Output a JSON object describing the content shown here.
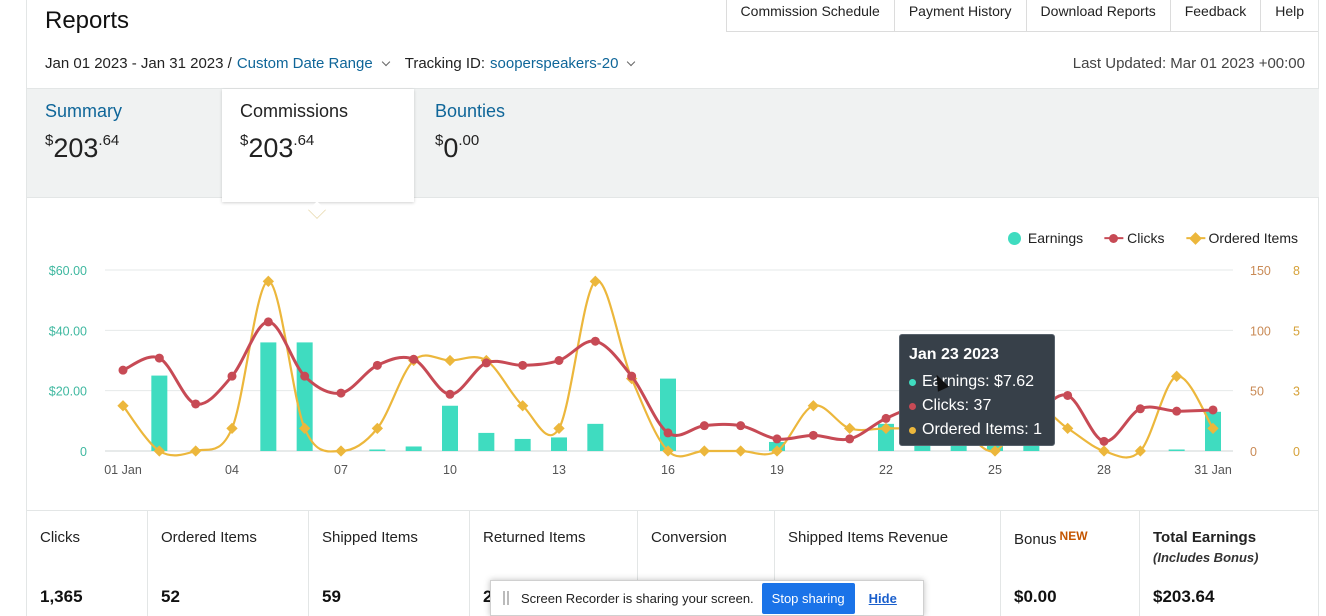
{
  "page": {
    "title": "Reports"
  },
  "nav": {
    "items": [
      "Commission Schedule",
      "Payment History",
      "Download Reports",
      "Feedback",
      "Help"
    ]
  },
  "filters": {
    "date_range": "Jan 01 2023 - Jan 31 2023 /",
    "custom_date_link": "Custom Date Range",
    "tracking_label": "Tracking ID:",
    "tracking_id": "sooperspeakers-20",
    "last_updated": "Last Updated: Mar 01 2023 +00:00"
  },
  "tabs": [
    {
      "label": "Summary",
      "currency": "$",
      "main": "203",
      "cents": ".64",
      "active": false
    },
    {
      "label": "Commissions",
      "currency": "$",
      "main": "203",
      "cents": ".64",
      "active": true
    },
    {
      "label": "Bounties",
      "currency": "$",
      "main": "0",
      "cents": ".00",
      "active": false
    }
  ],
  "legend": {
    "earnings": "Earnings",
    "clicks": "Clicks",
    "ordered": "Ordered Items"
  },
  "tooltip": {
    "date": "Jan 23 2023",
    "earnings": "Earnings: $7.62",
    "clicks": "Clicks: 37",
    "ordered": "Ordered Items: 1"
  },
  "colors": {
    "earnings": "#3fdcc0",
    "clicks": "#c74a55",
    "ordered": "#ecb73c",
    "link": "#0f6699",
    "new_badge": "#c45500"
  },
  "chart_data": {
    "type": "bar+line",
    "x": [
      "01 Jan",
      "02",
      "03",
      "04",
      "05",
      "06",
      "07",
      "08",
      "09",
      "10",
      "11",
      "12",
      "13",
      "14",
      "15",
      "16",
      "17",
      "18",
      "19",
      "20",
      "21",
      "22",
      "23",
      "24",
      "25",
      "26",
      "27",
      "28",
      "29",
      "30",
      "31 Jan"
    ],
    "x_tick_labels": [
      "01 Jan",
      "04",
      "07",
      "10",
      "13",
      "16",
      "19",
      "22",
      "25",
      "28",
      "31 Jan"
    ],
    "left_axis": {
      "ticks": [
        "0",
        "$20.00",
        "$40.00",
        "$60.00"
      ],
      "range": [
        0,
        60
      ]
    },
    "right_axis_clicks": {
      "ticks": [
        "0",
        "50",
        "100",
        "150"
      ],
      "range": [
        0,
        150
      ]
    },
    "right_axis_ordered": {
      "ticks": [
        "0",
        "3",
        "5",
        "8"
      ],
      "range": [
        0,
        8
      ]
    },
    "series": [
      {
        "name": "Earnings",
        "kind": "bar",
        "axis": "left",
        "values": [
          0,
          25,
          0,
          0,
          36,
          36,
          0,
          0.5,
          1.5,
          15,
          6,
          4,
          4.5,
          9,
          0,
          24,
          0,
          0,
          3,
          0,
          0,
          9,
          7.62,
          5,
          5,
          5,
          0,
          0,
          0,
          0.5,
          13
        ]
      },
      {
        "name": "Clicks",
        "kind": "line",
        "axis": "right_clicks",
        "values": [
          67,
          77,
          39,
          62,
          107,
          62,
          48,
          71,
          76,
          47,
          73,
          71,
          75,
          91,
          62,
          15,
          21,
          21,
          10,
          13,
          10,
          27,
          37,
          28,
          32,
          30,
          46,
          8,
          35,
          33,
          34
        ]
      },
      {
        "name": "Ordered Items",
        "kind": "line",
        "axis": "right_ordered",
        "values": [
          2,
          0,
          0,
          1,
          7.5,
          1,
          0,
          1,
          4,
          4,
          4,
          2,
          1,
          7.5,
          3.2,
          0,
          0,
          0,
          0,
          2,
          1,
          1,
          1,
          1,
          0,
          2,
          1,
          0,
          0,
          3.3,
          1
        ]
      }
    ],
    "grid": true,
    "legend_position": "top-right"
  },
  "summary": {
    "clicks": {
      "label": "Clicks",
      "value": "1,365"
    },
    "ordered": {
      "label": "Ordered Items",
      "value": "52"
    },
    "shipped": {
      "label": "Shipped Items",
      "value": "59"
    },
    "returned": {
      "label": "Returned Items",
      "value": "2"
    },
    "conversion": {
      "label": "Conversion",
      "value": ""
    },
    "revenue": {
      "label": "Shipped Items Revenue",
      "value": ""
    },
    "bonus": {
      "label": "Bonus",
      "badge": "NEW",
      "value": "$0.00"
    },
    "total": {
      "label": "Total Earnings",
      "sub": "(Includes Bonus)",
      "value": "$203.64"
    }
  },
  "recorder": {
    "message": "Screen Recorder is sharing your screen.",
    "stop": "Stop sharing",
    "hide": "Hide"
  }
}
